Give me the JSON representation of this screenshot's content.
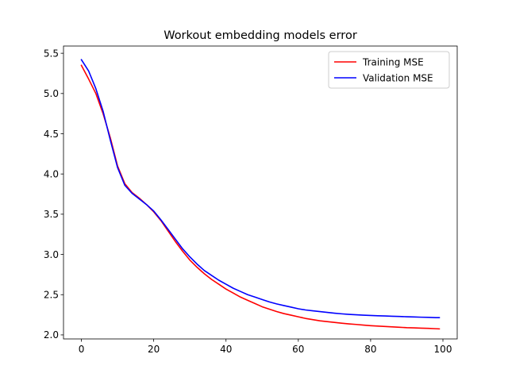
{
  "chart_data": {
    "type": "line",
    "title": "Workout embedding models error",
    "xlabel": "",
    "ylabel": "",
    "xlim": [
      -4.95,
      103.95
    ],
    "ylim": [
      1.95,
      5.59
    ],
    "xticks": [
      0,
      20,
      40,
      60,
      80,
      100
    ],
    "xtick_labels": [
      "0",
      "20",
      "40",
      "60",
      "80",
      "100"
    ],
    "yticks": [
      2.0,
      2.5,
      3.0,
      3.5,
      4.0,
      4.5,
      5.0,
      5.5
    ],
    "ytick_labels": [
      "2.0",
      "2.5",
      "3.0",
      "3.5",
      "4.0",
      "4.5",
      "5.0",
      "5.5"
    ],
    "grid": false,
    "legend_position": "top-right",
    "x": [
      0,
      2,
      4,
      6,
      8,
      10,
      12,
      14,
      16,
      18,
      20,
      22,
      24,
      26,
      28,
      30,
      32,
      34,
      36,
      38,
      40,
      42,
      44,
      46,
      48,
      50,
      52,
      54,
      56,
      58,
      60,
      62,
      64,
      66,
      68,
      70,
      72,
      74,
      76,
      78,
      80,
      82,
      84,
      86,
      88,
      90,
      92,
      94,
      96,
      98,
      99
    ],
    "series": [
      {
        "name": "Training MSE",
        "color": "#ff0000",
        "values": [
          5.35,
          5.18,
          5.0,
          4.75,
          4.45,
          4.1,
          3.88,
          3.77,
          3.7,
          3.62,
          3.53,
          3.42,
          3.29,
          3.16,
          3.04,
          2.93,
          2.84,
          2.76,
          2.69,
          2.63,
          2.57,
          2.52,
          2.47,
          2.43,
          2.39,
          2.35,
          2.32,
          2.29,
          2.265,
          2.245,
          2.225,
          2.205,
          2.19,
          2.175,
          2.165,
          2.155,
          2.145,
          2.137,
          2.13,
          2.122,
          2.115,
          2.11,
          2.105,
          2.1,
          2.095,
          2.09,
          2.087,
          2.084,
          2.081,
          2.077,
          2.075
        ]
      },
      {
        "name": "Validation MSE",
        "color": "#0000ff",
        "values": [
          5.42,
          5.28,
          5.06,
          4.78,
          4.42,
          4.08,
          3.86,
          3.76,
          3.69,
          3.62,
          3.54,
          3.43,
          3.31,
          3.19,
          3.07,
          2.97,
          2.88,
          2.8,
          2.74,
          2.68,
          2.63,
          2.58,
          2.54,
          2.5,
          2.47,
          2.44,
          2.41,
          2.385,
          2.365,
          2.345,
          2.325,
          2.31,
          2.3,
          2.29,
          2.28,
          2.27,
          2.262,
          2.255,
          2.25,
          2.245,
          2.242,
          2.238,
          2.235,
          2.232,
          2.229,
          2.226,
          2.223,
          2.22,
          2.218,
          2.215,
          2.215
        ]
      }
    ]
  }
}
